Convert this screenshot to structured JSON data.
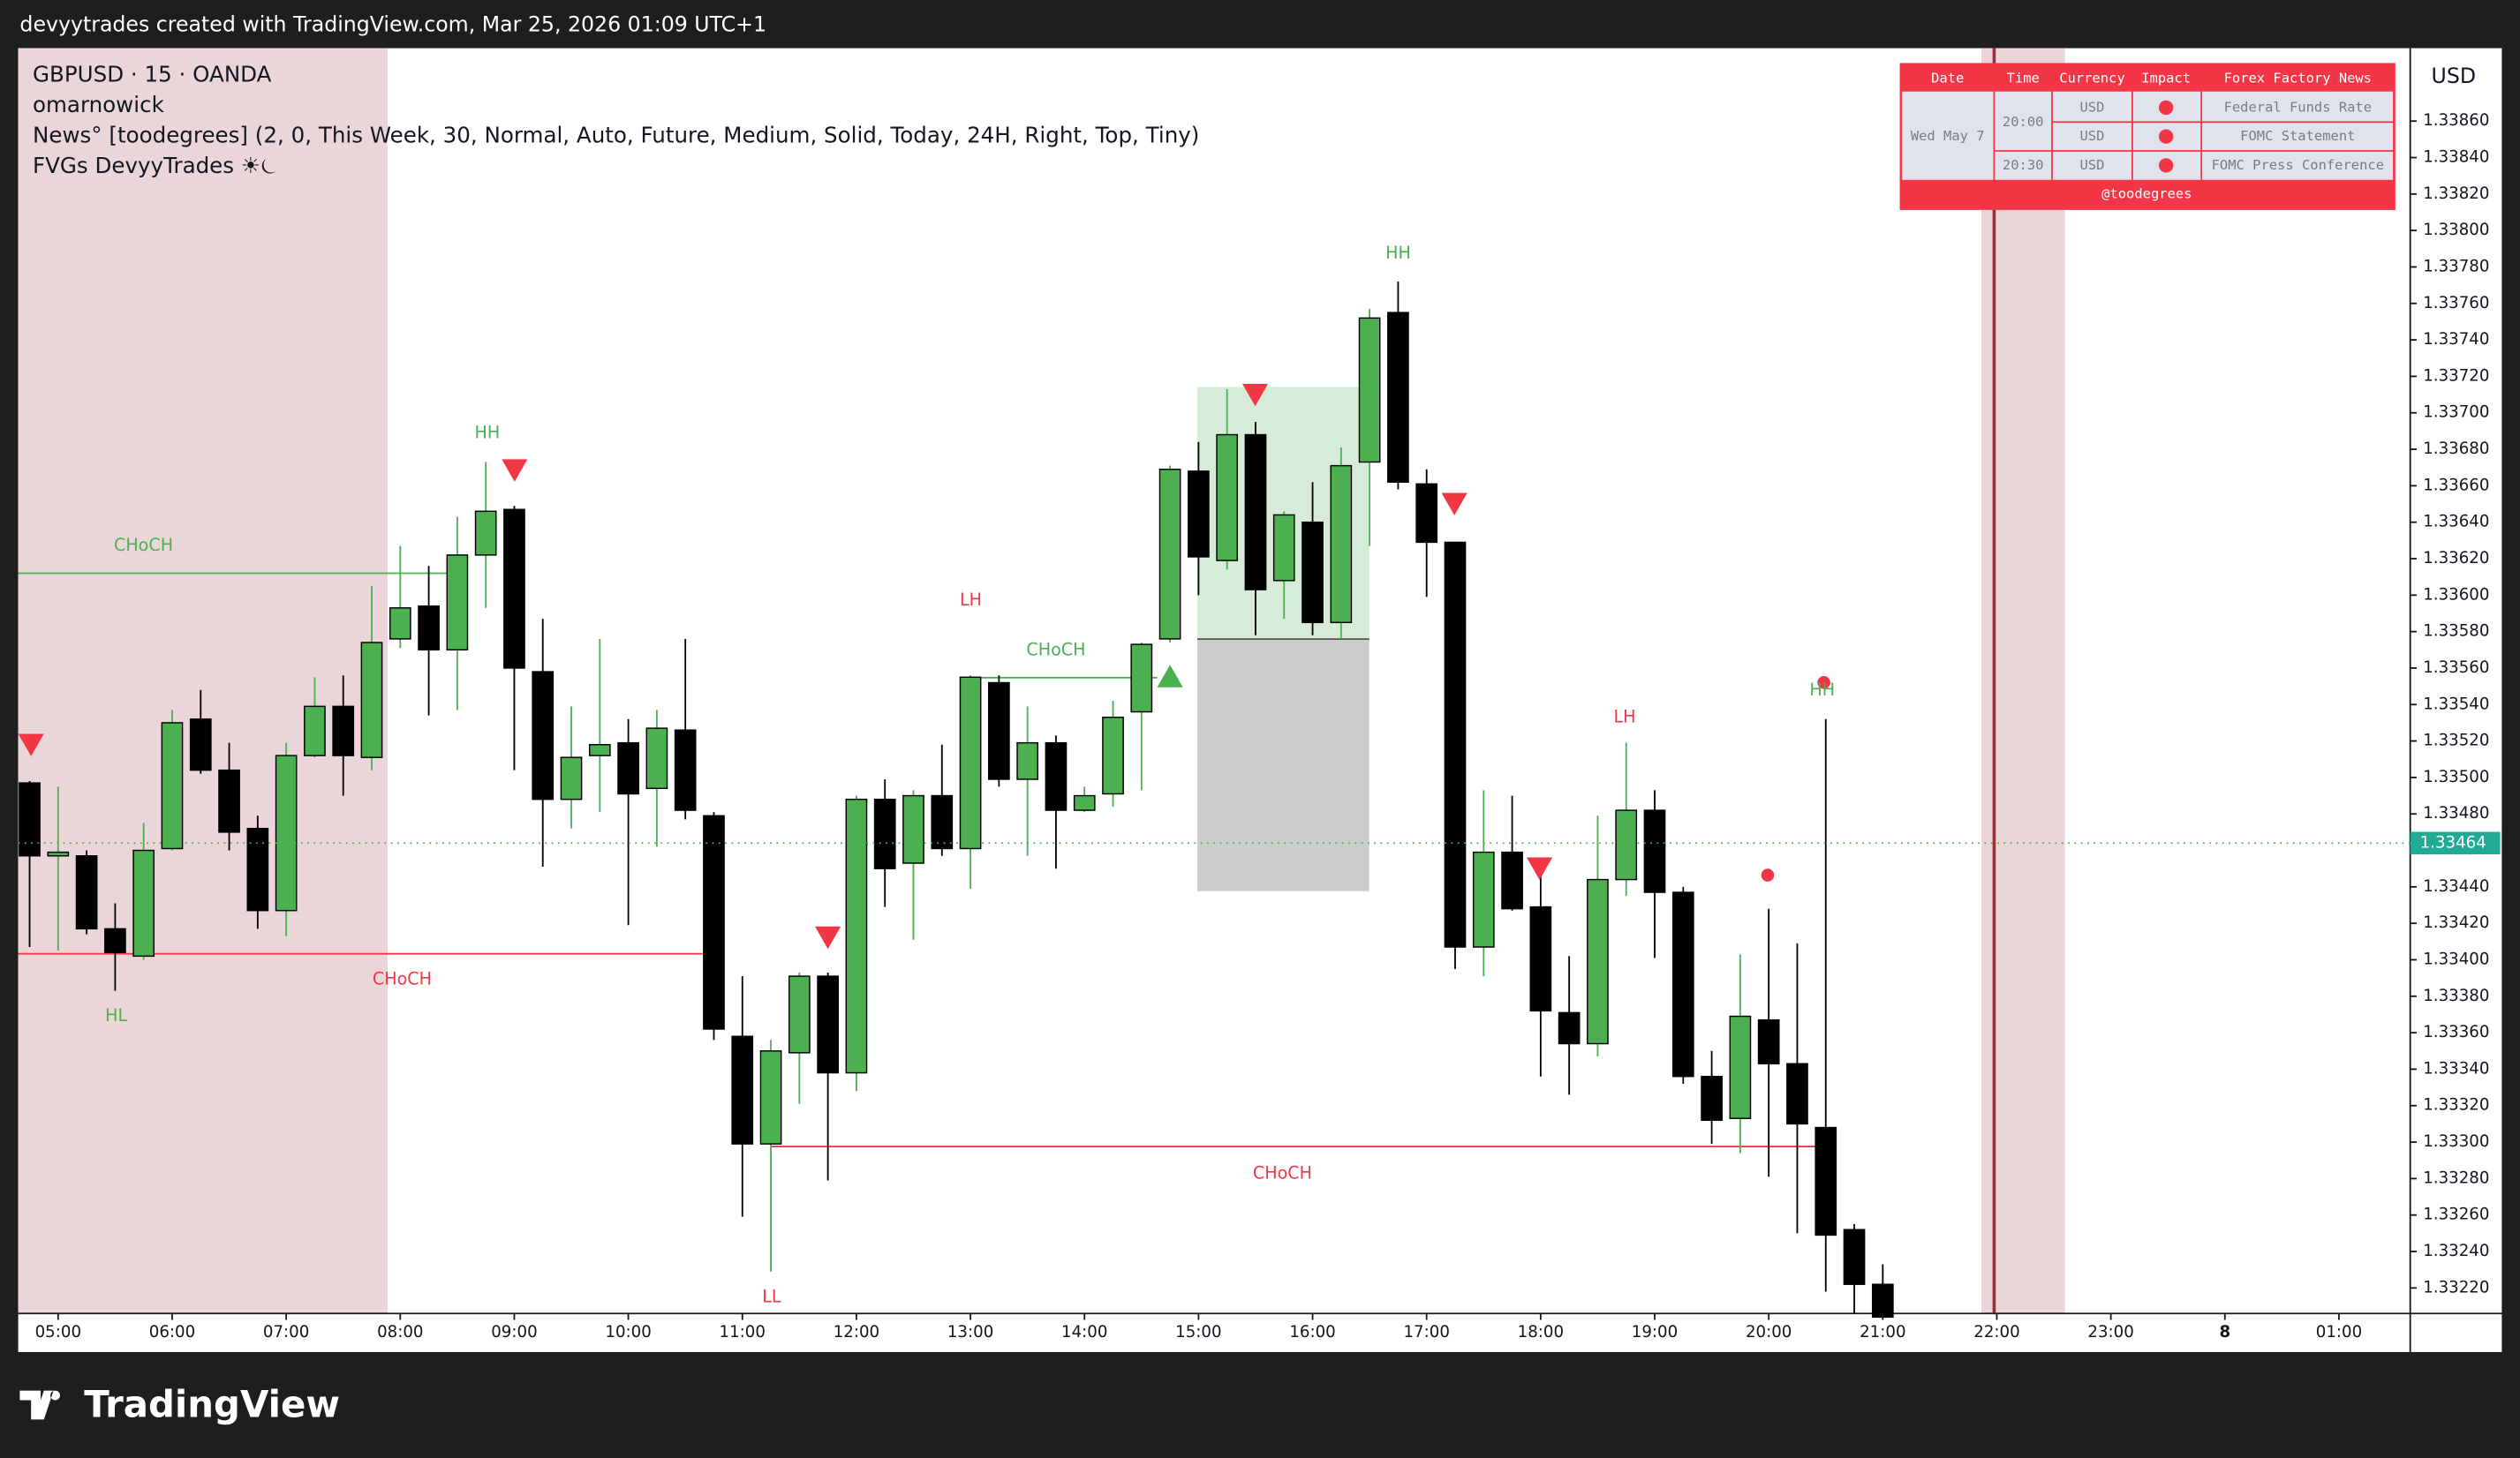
{
  "header": "devyytrades created with TradingView.com, Mar 25, 2026 01:09 UTC+1",
  "legend": [
    "GBPUSD · 15 · OANDA",
    "omarnowick",
    "News° [toodegrees] (2, 0, This Week, 30, Normal, Auto, Future, Medium, Solid, Today, 24H, Right, Top, Tiny)",
    "FVGs DevyyTrades ☀︎⏾"
  ],
  "news_table": {
    "headers": [
      "Date",
      "Time",
      "Currency",
      "Impact",
      "Forex Factory News"
    ],
    "date": "Wed May 7",
    "times": [
      "20:00",
      "20:30"
    ],
    "events": [
      {
        "currency": "USD",
        "name": "Federal Funds Rate"
      },
      {
        "currency": "USD",
        "name": "FOMC Statement"
      },
      {
        "currency": "USD",
        "name": "FOMC Press Conference"
      }
    ],
    "footer": "@toodegrees"
  },
  "chart_data": {
    "type": "candlestick",
    "currency": "USD",
    "up_color": "#4caf50",
    "down_color": "#000000",
    "last_price": 1.33464,
    "open": [
      1.33497,
      1.33457,
      1.33457,
      1.33417,
      1.33402,
      1.33461,
      1.33532,
      1.33504,
      1.33472,
      1.33427,
      1.33512,
      1.33539,
      1.33511,
      1.33576,
      1.33594,
      1.3357,
      1.33622,
      1.33647,
      1.33558,
      1.33488,
      1.33512,
      1.33519,
      1.33494,
      1.33526,
      1.33479,
      1.33358,
      1.33299,
      1.33349,
      1.33391,
      1.33338,
      1.33488,
      1.33453,
      1.3349,
      1.33461,
      1.33552,
      1.33499,
      1.33519,
      1.33482,
      1.33491,
      1.33536,
      1.33576,
      1.33668,
      1.33619,
      1.33688,
      1.33608,
      1.3364,
      1.33585,
      1.33673,
      1.33755,
      1.33661,
      1.33629,
      1.33407,
      1.33459,
      1.33429,
      1.33371,
      1.33354,
      1.33444,
      1.33482,
      1.33437,
      1.33336,
      1.33313,
      1.33367,
      1.33343,
      1.33308,
      1.33252,
      1.33222
    ],
    "high": [
      1.33498,
      1.33495,
      1.3346,
      1.33431,
      1.33475,
      1.33537,
      1.33548,
      1.33519,
      1.33479,
      1.33519,
      1.33555,
      1.33556,
      1.33605,
      1.33627,
      1.33616,
      1.33643,
      1.33673,
      1.33649,
      1.33587,
      1.33539,
      1.33576,
      1.33532,
      1.33537,
      1.33576,
      1.33481,
      1.33391,
      1.33356,
      1.33393,
      1.33393,
      1.3349,
      1.33499,
      1.33493,
      1.33518,
      1.33556,
      1.33556,
      1.33539,
      1.33523,
      1.33495,
      1.33542,
      1.33574,
      1.33671,
      1.33684,
      1.33713,
      1.33695,
      1.33646,
      1.33662,
      1.33681,
      1.33757,
      1.33772,
      1.33669,
      1.33629,
      1.33493,
      1.3349,
      1.33451,
      1.33402,
      1.33479,
      1.33519,
      1.33493,
      1.3344,
      1.3335,
      1.33403,
      1.33428,
      1.33409,
      1.33532,
      1.33255,
      1.33233
    ],
    "low": [
      1.33407,
      1.33405,
      1.33414,
      1.33383,
      1.334,
      1.3346,
      1.33502,
      1.3346,
      1.33417,
      1.33413,
      1.33511,
      1.3349,
      1.33504,
      1.33571,
      1.33534,
      1.33537,
      1.33593,
      1.33504,
      1.33451,
      1.33472,
      1.33481,
      1.33419,
      1.33462,
      1.33477,
      1.33356,
      1.33259,
      1.33229,
      1.33321,
      1.33279,
      1.33328,
      1.33429,
      1.33411,
      1.33457,
      1.33439,
      1.33495,
      1.33457,
      1.3345,
      1.33481,
      1.33484,
      1.33493,
      1.33574,
      1.336,
      1.33614,
      1.33578,
      1.33587,
      1.33578,
      1.33576,
      1.33627,
      1.33658,
      1.33599,
      1.33395,
      1.33391,
      1.33427,
      1.33336,
      1.33326,
      1.33347,
      1.33435,
      1.33401,
      1.33332,
      1.33299,
      1.33294,
      1.33281,
      1.3325,
      1.33218,
      1.33206,
      1.33204
    ],
    "close": [
      1.33457,
      1.33459,
      1.33417,
      1.33404,
      1.3346,
      1.3353,
      1.33504,
      1.3347,
      1.33427,
      1.33512,
      1.33539,
      1.33512,
      1.33574,
      1.33593,
      1.3357,
      1.33622,
      1.33646,
      1.3356,
      1.33488,
      1.33511,
      1.33518,
      1.33491,
      1.33527,
      1.33482,
      1.33362,
      1.33299,
      1.3335,
      1.33391,
      1.33338,
      1.33488,
      1.3345,
      1.3349,
      1.33461,
      1.33555,
      1.33499,
      1.33519,
      1.33482,
      1.3349,
      1.33533,
      1.33573,
      1.33669,
      1.33621,
      1.33688,
      1.33603,
      1.33644,
      1.33585,
      1.33671,
      1.33752,
      1.33662,
      1.33629,
      1.33407,
      1.33459,
      1.33428,
      1.33372,
      1.33354,
      1.33444,
      1.33482,
      1.33437,
      1.33336,
      1.33312,
      1.33369,
      1.33343,
      1.3331,
      1.33249,
      1.33222,
      1.33204
    ],
    "xlim": [
      -0.4,
      83.5
    ],
    "xticks": [
      {
        "value": 1,
        "label": "05:00"
      },
      {
        "value": 5,
        "label": "06:00"
      },
      {
        "value": 9,
        "label": "07:00"
      },
      {
        "value": 13,
        "label": "08:00"
      },
      {
        "value": 17,
        "label": "09:00"
      },
      {
        "value": 21,
        "label": "10:00"
      },
      {
        "value": 25,
        "label": "11:00"
      },
      {
        "value": 29,
        "label": "12:00"
      },
      {
        "value": 33,
        "label": "13:00"
      },
      {
        "value": 37,
        "label": "14:00"
      },
      {
        "value": 41,
        "label": "15:00"
      },
      {
        "value": 45,
        "label": "16:00"
      },
      {
        "value": 49,
        "label": "17:00"
      },
      {
        "value": 53,
        "label": "18:00"
      },
      {
        "value": 57,
        "label": "19:00"
      },
      {
        "value": 61,
        "label": "20:00"
      },
      {
        "value": 65,
        "label": "21:00"
      },
      {
        "value": 69,
        "label": "22:00"
      },
      {
        "value": 73,
        "label": "23:00"
      },
      {
        "value": 77,
        "label": "8"
      },
      {
        "value": 81,
        "label": "01:00"
      }
    ],
    "ylim": [
      1.33206,
      1.339
    ],
    "yticks": [
      {
        "value": 1.3322,
        "label": "1.33220"
      },
      {
        "value": 1.3324,
        "label": "1.33240"
      },
      {
        "value": 1.3326,
        "label": "1.33260"
      },
      {
        "value": 1.3328,
        "label": "1.33280"
      },
      {
        "value": 1.333,
        "label": "1.33300"
      },
      {
        "value": 1.3332,
        "label": "1.33320"
      },
      {
        "value": 1.3334,
        "label": "1.33340"
      },
      {
        "value": 1.3336,
        "label": "1.33360"
      },
      {
        "value": 1.3338,
        "label": "1.33380"
      },
      {
        "value": 1.334,
        "label": "1.33400"
      },
      {
        "value": 1.3342,
        "label": "1.33420"
      },
      {
        "value": 1.3344,
        "label": "1.33440"
      },
      {
        "value": 1.3348,
        "label": "1.33480"
      },
      {
        "value": 1.335,
        "label": "1.33500"
      },
      {
        "value": 1.3352,
        "label": "1.33520"
      },
      {
        "value": 1.3354,
        "label": "1.33540"
      },
      {
        "value": 1.3356,
        "label": "1.33560"
      },
      {
        "value": 1.3358,
        "label": "1.33580"
      },
      {
        "value": 1.336,
        "label": "1.33600"
      },
      {
        "value": 1.3362,
        "label": "1.33620"
      },
      {
        "value": 1.3364,
        "label": "1.33640"
      },
      {
        "value": 1.3366,
        "label": "1.33660"
      },
      {
        "value": 1.3368,
        "label": "1.33680"
      },
      {
        "value": 1.337,
        "label": "1.33700"
      },
      {
        "value": 1.3372,
        "label": "1.33720"
      },
      {
        "value": 1.3374,
        "label": "1.33740"
      },
      {
        "value": 1.3376,
        "label": "1.33760"
      },
      {
        "value": 1.3378,
        "label": "1.33780"
      },
      {
        "value": 1.338,
        "label": "1.33800"
      },
      {
        "value": 1.3382,
        "label": "1.33820"
      },
      {
        "value": 1.3384,
        "label": "1.33840"
      },
      {
        "value": 1.3386,
        "label": "1.33860"
      }
    ],
    "annotations": [
      {
        "text": "CHoCH",
        "color": "#4caf50"
      },
      {
        "text": "HL",
        "color": "#4caf50"
      },
      {
        "text": "CHoCH",
        "color": "#f23645"
      },
      {
        "text": "HH",
        "color": "#4caf50"
      },
      {
        "text": "LH",
        "color": "#f23645"
      },
      {
        "text": "CHoCH",
        "color": "#4caf50"
      },
      {
        "text": "LL",
        "color": "#f23645"
      },
      {
        "text": "HH",
        "color": "#4caf50"
      },
      {
        "text": "CHoCH",
        "color": "#f23645"
      },
      {
        "text": "LH",
        "color": "#f23645"
      },
      {
        "text": "HH",
        "color": "#4caf50"
      }
    ]
  },
  "footer": "TradingView"
}
